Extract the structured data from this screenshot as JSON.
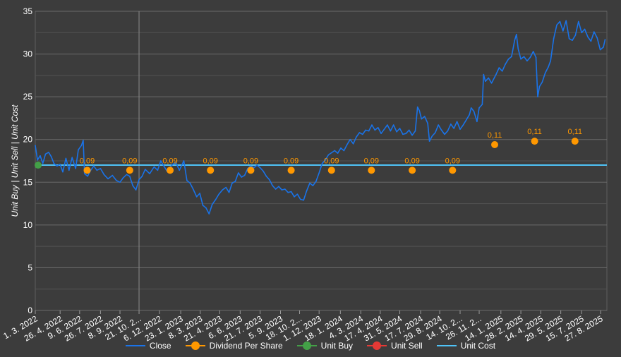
{
  "chart_data": {
    "type": "line",
    "ylabel": "Unit Buy | Unit Sell | Unit Cost",
    "ylim": [
      0,
      35
    ],
    "yticks": [
      0,
      5,
      10,
      15,
      20,
      25,
      30,
      35
    ],
    "xlim": [
      "2022-03-01",
      "2025-09-10"
    ],
    "x_tick_labels": [
      {
        "date": "2022-03-01",
        "label": "1. 3. 2022"
      },
      {
        "date": "2022-04-26",
        "label": "26. 4. 2022"
      },
      {
        "date": "2022-06-09",
        "label": "9. 6. 2022"
      },
      {
        "date": "2022-07-26",
        "label": "26. 7. 2022"
      },
      {
        "date": "2022-09-08",
        "label": "8. 9. 2022"
      },
      {
        "date": "2022-10-21",
        "label": "21. 10. 2..."
      },
      {
        "date": "2022-12-06",
        "label": "6. 12. 2022"
      },
      {
        "date": "2023-01-23",
        "label": "23. 1. 2023"
      },
      {
        "date": "2023-03-08",
        "label": "8. 3. 2023"
      },
      {
        "date": "2023-04-21",
        "label": "21. 4. 2023"
      },
      {
        "date": "2023-06-06",
        "label": "6. 6. 2023"
      },
      {
        "date": "2023-07-21",
        "label": "21. 7. 2023"
      },
      {
        "date": "2023-09-05",
        "label": "5. 9. 2023"
      },
      {
        "date": "2023-10-18",
        "label": "18. 10. 2..."
      },
      {
        "date": "2023-12-01",
        "label": "1. 12. 2023"
      },
      {
        "date": "2024-01-18",
        "label": "18. 1. 2024"
      },
      {
        "date": "2024-03-04",
        "label": "4. 3. 2024"
      },
      {
        "date": "2024-04-17",
        "label": "17. 4. 2024"
      },
      {
        "date": "2024-05-31",
        "label": "31. 5. 2024"
      },
      {
        "date": "2024-07-17",
        "label": "17. 7. 2024"
      },
      {
        "date": "2024-08-29",
        "label": "29. 8. 2024"
      },
      {
        "date": "2024-10-14",
        "label": "14. 10. 2..."
      },
      {
        "date": "2024-11-26",
        "label": "26. 11. 2..."
      },
      {
        "date": "2025-01-14",
        "label": "14. 1. 2025"
      },
      {
        "date": "2025-02-28",
        "label": "28. 2. 2025"
      },
      {
        "date": "2025-04-14",
        "label": "14. 4. 2025"
      },
      {
        "date": "2025-05-29",
        "label": "29. 5. 2025"
      },
      {
        "date": "2025-07-15",
        "label": "15. 7. 2025"
      },
      {
        "date": "2025-08-27",
        "label": "27. 8. 2025"
      }
    ],
    "series": [
      {
        "name": "Close",
        "color": "#1a73e8",
        "points": [
          [
            "2022-03-01",
            19.3
          ],
          [
            "2022-03-06",
            17.6
          ],
          [
            "2022-03-12",
            18.1
          ],
          [
            "2022-03-18",
            17.2
          ],
          [
            "2022-03-24",
            18.3
          ],
          [
            "2022-03-31",
            18.5
          ],
          [
            "2022-04-06",
            18.0
          ],
          [
            "2022-04-12",
            17.2
          ],
          [
            "2022-04-19",
            16.9
          ],
          [
            "2022-04-26",
            17.1
          ],
          [
            "2022-05-02",
            16.2
          ],
          [
            "2022-05-09",
            17.8
          ],
          [
            "2022-05-16",
            16.4
          ],
          [
            "2022-05-23",
            17.9
          ],
          [
            "2022-05-31",
            16.6
          ],
          [
            "2022-06-06",
            18.8
          ],
          [
            "2022-06-13",
            19.3
          ],
          [
            "2022-06-17",
            19.9
          ],
          [
            "2022-06-20",
            16.0
          ],
          [
            "2022-06-27",
            15.7
          ],
          [
            "2022-07-04",
            16.4
          ],
          [
            "2022-07-11",
            16.9
          ],
          [
            "2022-07-18",
            16.4
          ],
          [
            "2022-07-26",
            16.6
          ],
          [
            "2022-08-03",
            15.9
          ],
          [
            "2022-08-12",
            15.4
          ],
          [
            "2022-08-22",
            15.8
          ],
          [
            "2022-08-31",
            15.2
          ],
          [
            "2022-09-08",
            15.0
          ],
          [
            "2022-09-15",
            15.5
          ],
          [
            "2022-09-23",
            15.9
          ],
          [
            "2022-09-30",
            15.7
          ],
          [
            "2022-10-07",
            14.6
          ],
          [
            "2022-10-14",
            14.1
          ],
          [
            "2022-10-21",
            15.3
          ],
          [
            "2022-10-28",
            15.7
          ],
          [
            "2022-11-04",
            16.5
          ],
          [
            "2022-11-14",
            16.0
          ],
          [
            "2022-11-24",
            16.8
          ],
          [
            "2022-12-02",
            16.4
          ],
          [
            "2022-12-09",
            17.5
          ],
          [
            "2022-12-16",
            16.9
          ],
          [
            "2022-12-23",
            16.3
          ],
          [
            "2023-01-05",
            17.1
          ],
          [
            "2023-01-12",
            17.3
          ],
          [
            "2023-01-20",
            16.4
          ],
          [
            "2023-01-30",
            17.5
          ],
          [
            "2023-02-06",
            15.2
          ],
          [
            "2023-02-13",
            14.9
          ],
          [
            "2023-02-20",
            14.2
          ],
          [
            "2023-02-28",
            13.3
          ],
          [
            "2023-03-07",
            13.7
          ],
          [
            "2023-03-14",
            12.3
          ],
          [
            "2023-03-21",
            12.0
          ],
          [
            "2023-03-28",
            11.3
          ],
          [
            "2023-04-04",
            12.4
          ],
          [
            "2023-04-12",
            13.0
          ],
          [
            "2023-04-19",
            13.6
          ],
          [
            "2023-04-27",
            14.1
          ],
          [
            "2023-05-05",
            14.4
          ],
          [
            "2023-05-12",
            13.8
          ],
          [
            "2023-05-19",
            14.9
          ],
          [
            "2023-05-26",
            15.1
          ],
          [
            "2023-06-02",
            16.1
          ],
          [
            "2023-06-09",
            15.6
          ],
          [
            "2023-06-16",
            15.8
          ],
          [
            "2023-06-23",
            16.6
          ],
          [
            "2023-06-30",
            16.9
          ],
          [
            "2023-07-07",
            16.7
          ],
          [
            "2023-07-14",
            17.0
          ],
          [
            "2023-07-21",
            16.7
          ],
          [
            "2023-07-28",
            16.3
          ],
          [
            "2023-08-04",
            15.7
          ],
          [
            "2023-08-11",
            15.3
          ],
          [
            "2023-08-18",
            14.6
          ],
          [
            "2023-08-25",
            14.2
          ],
          [
            "2023-09-01",
            14.5
          ],
          [
            "2023-09-08",
            14.1
          ],
          [
            "2023-09-15",
            14.2
          ],
          [
            "2023-09-22",
            13.8
          ],
          [
            "2023-09-29",
            13.9
          ],
          [
            "2023-10-06",
            13.3
          ],
          [
            "2023-10-13",
            13.6
          ],
          [
            "2023-10-20",
            13.0
          ],
          [
            "2023-10-27",
            12.9
          ],
          [
            "2023-11-03",
            14.0
          ],
          [
            "2023-11-10",
            14.9
          ],
          [
            "2023-11-17",
            14.6
          ],
          [
            "2023-11-24",
            15.1
          ],
          [
            "2023-12-01",
            16.1
          ],
          [
            "2023-12-08",
            17.2
          ],
          [
            "2023-12-15",
            17.6
          ],
          [
            "2023-12-22",
            18.2
          ],
          [
            "2024-01-05",
            18.7
          ],
          [
            "2024-01-12",
            18.4
          ],
          [
            "2024-01-19",
            19.0
          ],
          [
            "2024-01-26",
            18.7
          ],
          [
            "2024-02-02",
            19.4
          ],
          [
            "2024-02-09",
            20.0
          ],
          [
            "2024-02-16",
            19.5
          ],
          [
            "2024-02-23",
            20.3
          ],
          [
            "2024-03-01",
            20.8
          ],
          [
            "2024-03-08",
            20.6
          ],
          [
            "2024-03-15",
            21.1
          ],
          [
            "2024-03-22",
            21.0
          ],
          [
            "2024-03-29",
            21.7
          ],
          [
            "2024-04-05",
            21.1
          ],
          [
            "2024-04-12",
            21.4
          ],
          [
            "2024-04-19",
            20.7
          ],
          [
            "2024-04-26",
            21.2
          ],
          [
            "2024-05-03",
            21.7
          ],
          [
            "2024-05-10",
            21.0
          ],
          [
            "2024-05-17",
            21.7
          ],
          [
            "2024-05-24",
            20.9
          ],
          [
            "2024-05-31",
            21.3
          ],
          [
            "2024-06-07",
            20.6
          ],
          [
            "2024-06-14",
            20.7
          ],
          [
            "2024-06-21",
            21.1
          ],
          [
            "2024-06-28",
            20.5
          ],
          [
            "2024-07-05",
            21.0
          ],
          [
            "2024-07-10",
            23.8
          ],
          [
            "2024-07-14",
            23.4
          ],
          [
            "2024-07-19",
            22.4
          ],
          [
            "2024-07-26",
            22.7
          ],
          [
            "2024-08-02",
            21.9
          ],
          [
            "2024-08-06",
            19.8
          ],
          [
            "2024-08-12",
            20.4
          ],
          [
            "2024-08-19",
            20.8
          ],
          [
            "2024-08-26",
            21.7
          ],
          [
            "2024-09-02",
            21.1
          ],
          [
            "2024-09-09",
            20.6
          ],
          [
            "2024-09-16",
            21.0
          ],
          [
            "2024-09-23",
            21.8
          ],
          [
            "2024-09-30",
            21.3
          ],
          [
            "2024-10-07",
            22.1
          ],
          [
            "2024-10-14",
            21.2
          ],
          [
            "2024-10-21",
            21.7
          ],
          [
            "2024-10-28",
            22.3
          ],
          [
            "2024-11-04",
            22.9
          ],
          [
            "2024-11-08",
            23.7
          ],
          [
            "2024-11-14",
            23.3
          ],
          [
            "2024-11-21",
            22.1
          ],
          [
            "2024-11-26",
            23.7
          ],
          [
            "2024-12-03",
            24.1
          ],
          [
            "2024-12-06",
            27.6
          ],
          [
            "2024-12-10",
            26.8
          ],
          [
            "2024-12-17",
            27.2
          ],
          [
            "2024-12-24",
            26.6
          ],
          [
            "2025-01-03",
            27.6
          ],
          [
            "2025-01-10",
            28.4
          ],
          [
            "2025-01-17",
            28.0
          ],
          [
            "2025-01-24",
            28.8
          ],
          [
            "2025-01-31",
            29.4
          ],
          [
            "2025-02-07",
            29.7
          ],
          [
            "2025-02-14",
            31.6
          ],
          [
            "2025-02-18",
            32.3
          ],
          [
            "2025-02-22",
            30.6
          ],
          [
            "2025-02-28",
            29.4
          ],
          [
            "2025-03-07",
            29.7
          ],
          [
            "2025-03-14",
            29.2
          ],
          [
            "2025-03-21",
            29.6
          ],
          [
            "2025-03-28",
            30.3
          ],
          [
            "2025-04-03",
            29.6
          ],
          [
            "2025-04-07",
            25.0
          ],
          [
            "2025-04-11",
            26.2
          ],
          [
            "2025-04-17",
            26.7
          ],
          [
            "2025-04-24",
            27.8
          ],
          [
            "2025-05-01",
            28.5
          ],
          [
            "2025-05-06",
            29.2
          ],
          [
            "2025-05-13",
            31.8
          ],
          [
            "2025-05-20",
            33.4
          ],
          [
            "2025-05-27",
            33.8
          ],
          [
            "2025-06-03",
            32.7
          ],
          [
            "2025-06-10",
            33.9
          ],
          [
            "2025-06-17",
            31.8
          ],
          [
            "2025-06-24",
            31.6
          ],
          [
            "2025-07-01",
            32.2
          ],
          [
            "2025-07-08",
            33.8
          ],
          [
            "2025-07-15",
            32.5
          ],
          [
            "2025-07-22",
            32.9
          ],
          [
            "2025-07-29",
            32.0
          ],
          [
            "2025-08-05",
            31.5
          ],
          [
            "2025-08-12",
            32.6
          ],
          [
            "2025-08-19",
            31.9
          ],
          [
            "2025-08-26",
            30.5
          ],
          [
            "2025-09-02",
            30.8
          ],
          [
            "2025-09-06",
            31.7
          ]
        ]
      },
      {
        "name": "Dividend Per Share",
        "color": "#ff9800",
        "points": [
          [
            "2022-06-26",
            16.4,
            "0,09"
          ],
          [
            "2022-09-30",
            16.4,
            "0,09"
          ],
          [
            "2022-12-30",
            16.4,
            "0,09"
          ],
          [
            "2023-03-31",
            16.4,
            "0,09"
          ],
          [
            "2023-06-30",
            16.4,
            "0,09"
          ],
          [
            "2023-09-29",
            16.4,
            "0,09"
          ],
          [
            "2023-12-29",
            16.4,
            "0,09"
          ],
          [
            "2024-03-28",
            16.4,
            "0,09"
          ],
          [
            "2024-06-28",
            16.4,
            "0,09"
          ],
          [
            "2024-09-27",
            16.4,
            "0,09"
          ],
          [
            "2024-12-31",
            19.4,
            "0,11"
          ],
          [
            "2025-03-31",
            19.8,
            "0,11"
          ],
          [
            "2025-06-30",
            19.8,
            "0,11"
          ]
        ]
      },
      {
        "name": "Unit Buy",
        "color": "#43a047",
        "points": [
          [
            "2022-03-01",
            17.0
          ]
        ]
      },
      {
        "name": "Unit Sell",
        "color": "#e53935",
        "points": []
      },
      {
        "name": "Unit Cost",
        "color": "#4fc3f7",
        "points": [
          [
            "2022-03-01",
            17.0
          ],
          [
            "2025-09-10",
            17.0
          ]
        ]
      }
    ],
    "marker_line": "2022-10-21",
    "grid": true,
    "legend_position": "bottom"
  }
}
